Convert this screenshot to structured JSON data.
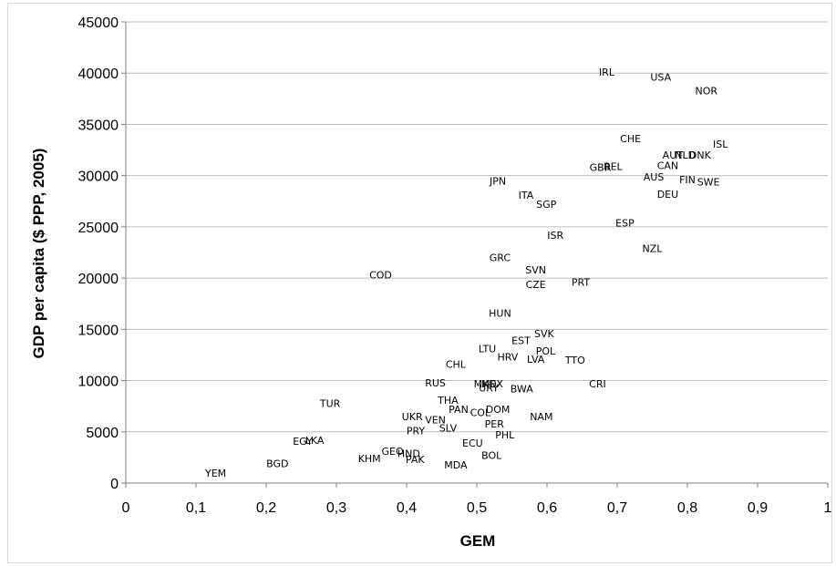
{
  "chart_data": {
    "type": "scatter",
    "title": "",
    "xlabel": "GEM",
    "ylabel": "GDP per capita ($ PPP, 2005)",
    "xlim": [
      0,
      1
    ],
    "ylim": [
      0,
      45000
    ],
    "xticks": [
      "0",
      "0,1",
      "0,2",
      "0,3",
      "0,4",
      "0,5",
      "0,6",
      "0,7",
      "0,8",
      "0,9",
      "1"
    ],
    "yticks": [
      "0",
      "5000",
      "10000",
      "15000",
      "20000",
      "25000",
      "30000",
      "35000",
      "40000",
      "45000"
    ],
    "grid": "horizontal",
    "legend": "none",
    "points": [
      {
        "label": "IRL",
        "x": 0.685,
        "y": 40100
      },
      {
        "label": "USA",
        "x": 0.762,
        "y": 39600
      },
      {
        "label": "NOR",
        "x": 0.827,
        "y": 38300
      },
      {
        "label": "CHE",
        "x": 0.719,
        "y": 33600
      },
      {
        "label": "ISL",
        "x": 0.847,
        "y": 33100
      },
      {
        "label": "AUT",
        "x": 0.779,
        "y": 32000
      },
      {
        "label": "NLD",
        "x": 0.797,
        "y": 32000
      },
      {
        "label": "DNK",
        "x": 0.818,
        "y": 32000
      },
      {
        "label": "CAN",
        "x": 0.772,
        "y": 31000
      },
      {
        "label": "GBR",
        "x": 0.676,
        "y": 30800
      },
      {
        "label": "BEL",
        "x": 0.694,
        "y": 30900
      },
      {
        "label": "AUS",
        "x": 0.752,
        "y": 29900
      },
      {
        "label": "FIN",
        "x": 0.8,
        "y": 29600
      },
      {
        "label": "SWE",
        "x": 0.83,
        "y": 29400
      },
      {
        "label": "JPN",
        "x": 0.53,
        "y": 29500
      },
      {
        "label": "ITA",
        "x": 0.57,
        "y": 28100
      },
      {
        "label": "SGP",
        "x": 0.599,
        "y": 27200
      },
      {
        "label": "DEU",
        "x": 0.772,
        "y": 28200
      },
      {
        "label": "ESP",
        "x": 0.711,
        "y": 25400
      },
      {
        "label": "ISR",
        "x": 0.612,
        "y": 24200
      },
      {
        "label": "NZL",
        "x": 0.75,
        "y": 22900
      },
      {
        "label": "GRC",
        "x": 0.533,
        "y": 22000
      },
      {
        "label": "SVN",
        "x": 0.584,
        "y": 20800
      },
      {
        "label": "COD",
        "x": 0.363,
        "y": 20300
      },
      {
        "label": "CZE",
        "x": 0.584,
        "y": 19400
      },
      {
        "label": "PRT",
        "x": 0.648,
        "y": 19600
      },
      {
        "label": "HUN",
        "x": 0.533,
        "y": 16600
      },
      {
        "label": "SVK",
        "x": 0.596,
        "y": 14600
      },
      {
        "label": "EST",
        "x": 0.563,
        "y": 13900
      },
      {
        "label": "LTU",
        "x": 0.515,
        "y": 13100
      },
      {
        "label": "POL",
        "x": 0.598,
        "y": 12900
      },
      {
        "label": "HRV",
        "x": 0.544,
        "y": 12300
      },
      {
        "label": "LVA",
        "x": 0.584,
        "y": 12100
      },
      {
        "label": "TTO",
        "x": 0.64,
        "y": 12000
      },
      {
        "label": "CHL",
        "x": 0.47,
        "y": 11600
      },
      {
        "label": "RUS",
        "x": 0.441,
        "y": 9800
      },
      {
        "label": "MKD",
        "x": 0.512,
        "y": 9700
      },
      {
        "label": "MEX",
        "x": 0.522,
        "y": 9700
      },
      {
        "label": "URY",
        "x": 0.517,
        "y": 9300
      },
      {
        "label": "BWA",
        "x": 0.564,
        "y": 9200
      },
      {
        "label": "CRI",
        "x": 0.672,
        "y": 9700
      },
      {
        "label": "TUR",
        "x": 0.291,
        "y": 7800
      },
      {
        "label": "THA",
        "x": 0.459,
        "y": 8100
      },
      {
        "label": "PAN",
        "x": 0.474,
        "y": 7200
      },
      {
        "label": "COL",
        "x": 0.505,
        "y": 6900
      },
      {
        "label": "DOM",
        "x": 0.53,
        "y": 7200
      },
      {
        "label": "NAM",
        "x": 0.592,
        "y": 6500
      },
      {
        "label": "UKR",
        "x": 0.408,
        "y": 6500
      },
      {
        "label": "VEN",
        "x": 0.441,
        "y": 6200
      },
      {
        "label": "PER",
        "x": 0.525,
        "y": 5800
      },
      {
        "label": "PRY",
        "x": 0.413,
        "y": 5100
      },
      {
        "label": "SLV",
        "x": 0.459,
        "y": 5400
      },
      {
        "label": "PHL",
        "x": 0.54,
        "y": 4700
      },
      {
        "label": "EGY",
        "x": 0.252,
        "y": 4100
      },
      {
        "label": "LKA",
        "x": 0.269,
        "y": 4200
      },
      {
        "label": "ECU",
        "x": 0.494,
        "y": 3900
      },
      {
        "label": "GEO",
        "x": 0.38,
        "y": 3100
      },
      {
        "label": "HND",
        "x": 0.403,
        "y": 2900
      },
      {
        "label": "KHM",
        "x": 0.347,
        "y": 2400
      },
      {
        "label": "PAK",
        "x": 0.412,
        "y": 2300
      },
      {
        "label": "BOL",
        "x": 0.521,
        "y": 2700
      },
      {
        "label": "MDA",
        "x": 0.47,
        "y": 1800
      },
      {
        "label": "BGD",
        "x": 0.216,
        "y": 1900
      },
      {
        "label": "YEM",
        "x": 0.128,
        "y": 1000
      }
    ]
  }
}
